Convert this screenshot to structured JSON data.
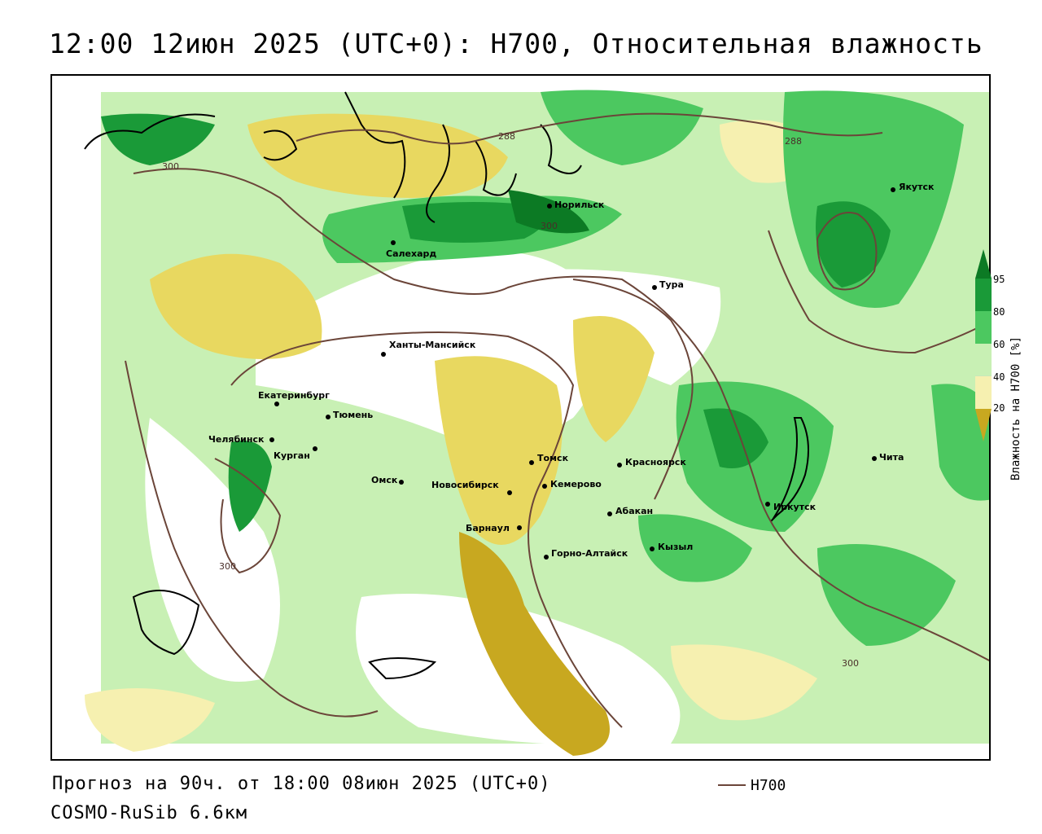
{
  "title": "12:00 12июн 2025 (UTC+0): H700, Относительная влажность",
  "footer": {
    "forecast": "Прогноз на 90ч. от 18:00 08июн 2025 (UTC+0)",
    "model": "COSMO-RuSib 6.6км"
  },
  "legend": {
    "line_label": "H700",
    "line_color": "#6b4539"
  },
  "colorbar": {
    "title": "Влажность на H700 [%]",
    "ticks": [
      "95",
      "80",
      "60",
      "40",
      "20"
    ],
    "colors": {
      "very_dry": "#c8a820",
      "dry": "#e8d860",
      "slightly_dry": "#f6f0b0",
      "neutral": "#ffffff",
      "moist": "#c8f0b4",
      "wet": "#4cc860",
      "very_wet": "#1a9a38",
      "saturated": "#0c7a24"
    }
  },
  "contour_labels": [
    "300",
    "288",
    "300",
    "288",
    "300",
    "300"
  ],
  "cities": [
    {
      "name": "Салехард"
    },
    {
      "name": "Норильск"
    },
    {
      "name": "Тура"
    },
    {
      "name": "Якутск"
    },
    {
      "name": "Ханты-Мансийск"
    },
    {
      "name": "Екатеринбург"
    },
    {
      "name": "Тюмень"
    },
    {
      "name": "Челябинск"
    },
    {
      "name": "Курган"
    },
    {
      "name": "Омск"
    },
    {
      "name": "Новосибирск"
    },
    {
      "name": "Томск"
    },
    {
      "name": "Кемерово"
    },
    {
      "name": "Красноярск"
    },
    {
      "name": "Барнаул"
    },
    {
      "name": "Абакан"
    },
    {
      "name": "Горно-Алтайск"
    },
    {
      "name": "Кызыл"
    },
    {
      "name": "Иркутск"
    },
    {
      "name": "Чита"
    }
  ]
}
